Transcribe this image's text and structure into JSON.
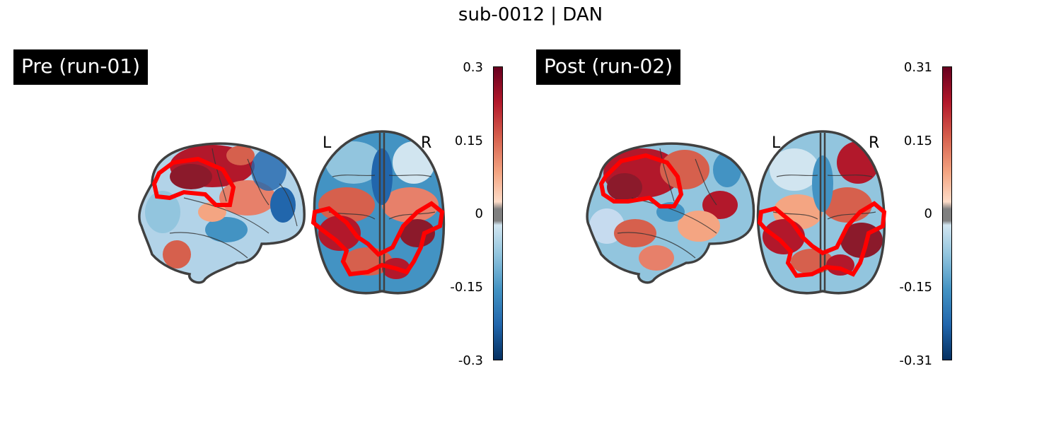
{
  "figure_title": "sub-0012 | DAN",
  "panels": [
    {
      "label": "Pre (run-01)",
      "colorbar": {
        "ticks": [
          "0.3",
          "0.15",
          "0",
          "-0.15",
          "-0.3"
        ],
        "cmap": "RdBu_r"
      },
      "orientation": {
        "left": "L",
        "right": "R"
      }
    },
    {
      "label": "Post (run-02)",
      "colorbar": {
        "ticks": [
          "0.31",
          "0.15",
          "0",
          "-0.15",
          "-0.31"
        ],
        "cmap": "RdBu_r"
      },
      "orientation": {
        "left": "L",
        "right": "R"
      }
    }
  ],
  "colors": {
    "roi_outline": "#ff0000",
    "brain_outline": "#404040",
    "positive": "#b2182b",
    "negative": "#2166ac",
    "threshold_band": "#808080"
  }
}
